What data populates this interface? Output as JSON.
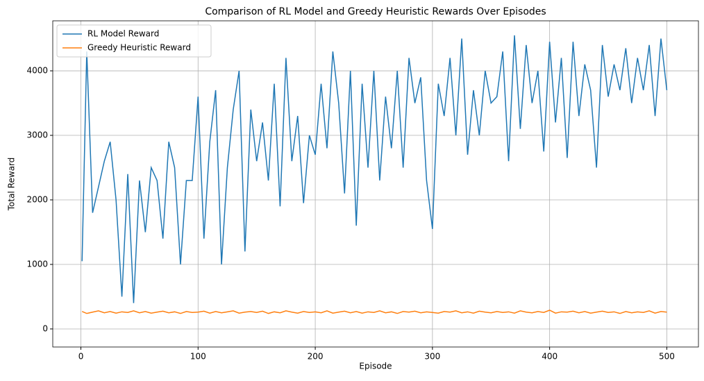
{
  "chart_data": {
    "type": "line",
    "title": "Comparison of RL Model and Greedy Heuristic Rewards Over Episodes",
    "x_label": "Episode",
    "y_label": "Total Reward",
    "x": [
      1,
      5,
      10,
      15,
      20,
      25,
      30,
      35,
      40,
      45,
      50,
      55,
      60,
      65,
      70,
      75,
      80,
      85,
      90,
      95,
      100,
      105,
      110,
      115,
      120,
      125,
      130,
      135,
      140,
      145,
      150,
      155,
      160,
      165,
      170,
      175,
      180,
      185,
      190,
      195,
      200,
      205,
      210,
      215,
      220,
      225,
      230,
      235,
      240,
      245,
      250,
      255,
      260,
      265,
      270,
      275,
      280,
      285,
      290,
      295,
      300,
      305,
      310,
      315,
      320,
      325,
      330,
      335,
      340,
      345,
      350,
      355,
      360,
      365,
      370,
      375,
      380,
      385,
      390,
      395,
      400,
      405,
      410,
      415,
      420,
      425,
      430,
      435,
      440,
      445,
      450,
      455,
      460,
      465,
      470,
      475,
      480,
      485,
      490,
      495,
      500
    ],
    "series": [
      {
        "name": "RL Model Reward",
        "color": "#1f77b4",
        "values": [
          1050,
          4300,
          1800,
          2200,
          2600,
          2900,
          2000,
          500,
          2400,
          400,
          2300,
          1500,
          2500,
          2300,
          1400,
          2900,
          2500,
          1000,
          2300,
          2300,
          3600,
          1400,
          2900,
          3700,
          1000,
          2500,
          3400,
          4000,
          1200,
          3400,
          2600,
          3200,
          2300,
          3800,
          1900,
          4200,
          2600,
          3300,
          1950,
          3000,
          2700,
          3800,
          2800,
          4300,
          3500,
          2100,
          4000,
          1600,
          3800,
          2500,
          4000,
          2300,
          3600,
          2800,
          4000,
          2500,
          4200,
          3500,
          3900,
          2300,
          1550,
          3800,
          3300,
          4200,
          3000,
          4500,
          2700,
          3700,
          3000,
          4000,
          3500,
          3600,
          4300,
          2600,
          4550,
          3100,
          4400,
          3500,
          4000,
          2750,
          4450,
          3200,
          4200,
          2650,
          4450,
          3300,
          4100,
          3700,
          2500,
          4400,
          3600,
          4100,
          3700,
          4350,
          3500,
          4200,
          3700,
          4400,
          3300,
          4500,
          3700
        ]
      },
      {
        "name": "Greedy Heuristic Reward",
        "color": "#ff7f0e",
        "values": [
          270,
          240,
          260,
          280,
          250,
          270,
          245,
          265,
          255,
          280,
          250,
          270,
          245,
          260,
          275,
          250,
          265,
          240,
          270,
          255,
          260,
          275,
          245,
          270,
          250,
          265,
          280,
          245,
          260,
          270,
          255,
          275,
          240,
          265,
          250,
          280,
          260,
          245,
          270,
          255,
          265,
          250,
          280,
          245,
          260,
          275,
          250,
          270,
          245,
          265,
          255,
          280,
          250,
          265,
          240,
          270,
          260,
          275,
          250,
          265,
          255,
          245,
          270,
          260,
          280,
          250,
          265,
          245,
          275,
          260,
          250,
          270,
          255,
          265,
          245,
          280,
          260,
          250,
          270,
          255,
          290,
          245,
          265,
          260,
          275,
          250,
          270,
          245,
          260,
          275,
          255,
          265,
          240,
          270,
          250,
          265,
          255,
          280,
          245,
          270,
          260
        ]
      }
    ],
    "xlim": [
      -24,
      527
    ],
    "ylim": [
      -280,
      4775
    ],
    "xticks": [
      0,
      100,
      200,
      300,
      400,
      500
    ],
    "yticks": [
      0,
      1000,
      2000,
      3000,
      4000
    ],
    "grid": true,
    "legend": "upper-left"
  }
}
